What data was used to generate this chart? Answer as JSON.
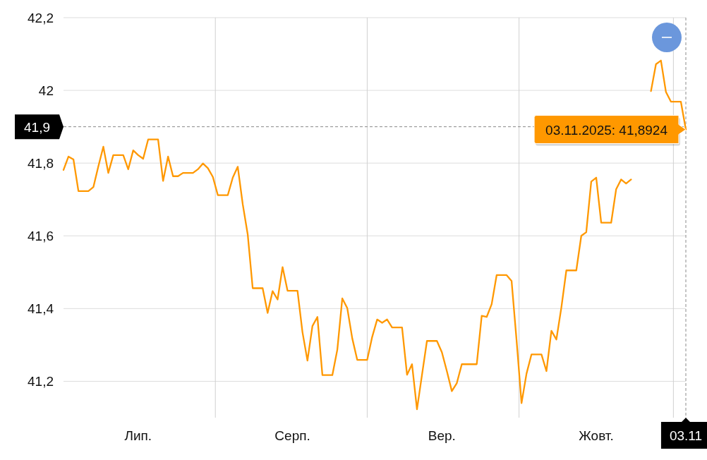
{
  "chart_data": {
    "type": "line",
    "categories": [
      null,
      null,
      null,
      null,
      null,
      null,
      null,
      null,
      null,
      null,
      null,
      null,
      null,
      null,
      null,
      "Лип.",
      null,
      null,
      null,
      null,
      null,
      null,
      null,
      null,
      null,
      null,
      null,
      null,
      null,
      null,
      null,
      null,
      null,
      null,
      null,
      null,
      null,
      null,
      null,
      null,
      null,
      null,
      null,
      null,
      null,
      null,
      "Серп.",
      null,
      null,
      null,
      null,
      null,
      null,
      null,
      null,
      null,
      null,
      null,
      null,
      null,
      null,
      null,
      null,
      null,
      null,
      null,
      null,
      null,
      null,
      null,
      null,
      null,
      null,
      null,
      null,
      null,
      "Вер.",
      null,
      null,
      null,
      null,
      null,
      null,
      null,
      null,
      null,
      null,
      null,
      null,
      null,
      null,
      null,
      null,
      null,
      null,
      null,
      null,
      null,
      null,
      null,
      null,
      null,
      null,
      null,
      null,
      null,
      null,
      "Жовт.",
      null,
      null,
      null,
      null,
      null,
      null,
      null,
      null,
      null,
      null,
      null,
      null,
      null,
      null,
      null,
      null,
      null,
      "03.11"
    ],
    "series": [
      {
        "color": "#ff9800",
        "values": [
          41.781,
          41.818,
          41.81,
          41.723,
          41.723,
          41.723,
          41.734,
          41.791,
          41.845,
          41.773,
          41.822,
          41.822,
          41.822,
          41.783,
          41.835,
          41.822,
          41.812,
          41.865,
          41.865,
          41.865,
          41.751,
          41.818,
          41.764,
          41.764,
          41.773,
          41.773,
          41.773,
          41.783,
          41.799,
          41.786,
          41.762,
          41.712,
          41.712,
          41.712,
          41.76,
          41.79,
          41.687,
          41.604,
          41.456,
          41.456,
          41.456,
          41.388,
          41.448,
          41.425,
          41.514,
          41.449,
          41.449,
          41.449,
          41.335,
          41.257,
          41.352,
          41.377,
          41.217,
          41.217,
          41.217,
          41.287,
          41.428,
          41.401,
          41.318,
          41.259,
          41.259,
          41.259,
          41.322,
          41.37,
          41.361,
          41.37,
          41.348,
          41.348,
          41.348,
          41.218,
          41.247,
          41.123,
          41.217,
          41.311,
          41.311,
          41.311,
          41.28,
          41.228,
          41.173,
          41.195,
          41.247,
          41.247,
          41.247,
          41.247,
          41.38,
          41.377,
          41.412,
          41.492,
          41.492,
          41.492,
          41.476,
          41.313,
          41.14,
          41.221,
          41.274,
          41.274,
          41.274,
          41.228,
          41.339,
          41.315,
          41.403,
          41.505,
          41.505,
          41.505,
          41.6,
          41.61,
          41.749,
          41.76,
          41.636,
          41.636,
          41.636,
          41.728,
          41.755,
          41.744,
          41.755,
          null,
          null,
          null,
          41.998,
          42.072,
          42.082,
          41.996,
          41.969,
          41.969,
          41.969,
          41.8924
        ]
      }
    ],
    "ylim": [
      41.1,
      42.2
    ],
    "yticks": [
      {
        "value": 41.2,
        "label": "41,2"
      },
      {
        "value": 41.4,
        "label": "41,4"
      },
      {
        "value": 41.6,
        "label": "41,6"
      },
      {
        "value": 41.8,
        "label": "41,8"
      },
      42,
      {
        "value": 42.2,
        "label": "42,2"
      }
    ],
    "grid": true,
    "ref_lines": [
      {
        "axis": "y",
        "value": 41.9,
        "label": "41,9",
        "line_style": "dashed"
      },
      {
        "axis": "x",
        "value": "03.11",
        "line_style": "dashed"
      }
    ],
    "annotations": [
      {
        "text": "03.11.2025: 41,8924",
        "x": "03.11",
        "y": 41.8924
      }
    ]
  }
}
